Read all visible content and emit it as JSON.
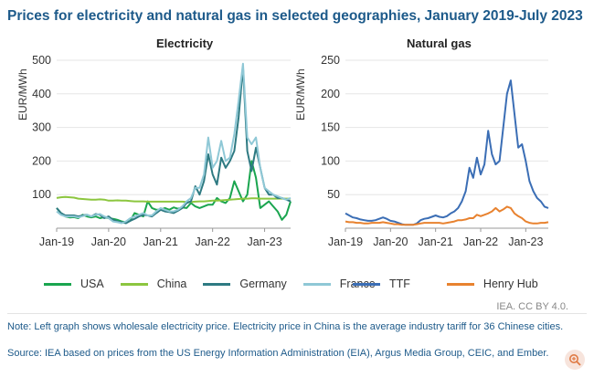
{
  "title": "Prices for electricity and natural gas in selected geographies, January 2019-July 2023",
  "credit": "IEA. CC BY 4.0.",
  "note": "Note: Left graph shows wholesale electricity price. Electricity price in China is the average industry tariff for 36 Chinese cities.",
  "source": "Source: IEA based on prices from the US Energy Information Administration (EIA), Argus Media Group, CEIC, and Ember.",
  "chart_data": [
    {
      "type": "line",
      "title": "Electricity",
      "ylabel": "EUR/MWh",
      "ylim": [
        0,
        500
      ],
      "yticks": [
        100,
        200,
        300,
        400,
        500
      ],
      "xticks": [
        "Jan-19",
        "Jan-20",
        "Jan-21",
        "Jan-22",
        "Jan-23"
      ],
      "x_range": [
        "2019-01",
        "2023-07"
      ],
      "x_start": "2019-01",
      "series": [
        {
          "name": "USA",
          "color": "#1aa54f",
          "values": [
            60,
            45,
            35,
            32,
            33,
            30,
            40,
            35,
            32,
            35,
            30,
            33,
            30,
            28,
            25,
            20,
            18,
            22,
            45,
            40,
            35,
            80,
            60,
            55,
            55,
            60,
            55,
            62,
            58,
            62,
            60,
            75,
            65,
            60,
            65,
            70,
            70,
            90,
            80,
            75,
            90,
            140,
            110,
            80,
            100,
            200,
            150,
            60,
            70,
            80,
            65,
            50,
            25,
            40,
            80
          ]
        },
        {
          "name": "China",
          "color": "#8cc63f",
          "values": [
            90,
            92,
            93,
            92,
            91,
            88,
            87,
            86,
            85,
            85,
            86,
            85,
            82,
            82,
            83,
            82,
            82,
            81,
            80,
            80,
            80,
            79,
            79,
            79,
            79,
            79,
            79,
            79,
            79,
            79,
            78,
            78,
            79,
            80,
            80,
            81,
            82,
            82,
            83,
            84,
            85,
            86,
            87,
            88,
            88,
            89,
            89,
            88,
            88,
            88,
            88,
            88,
            88,
            88,
            88
          ]
        },
        {
          "name": "Germany",
          "color": "#2e7a82",
          "values": [
            60,
            45,
            38,
            38,
            38,
            35,
            38,
            40,
            35,
            42,
            40,
            30,
            35,
            25,
            20,
            18,
            15,
            22,
            28,
            35,
            40,
            38,
            35,
            45,
            55,
            50,
            48,
            45,
            52,
            60,
            75,
            80,
            125,
            100,
            140,
            220,
            160,
            130,
            210,
            180,
            200,
            230,
            330,
            480,
            230,
            170,
            240,
            180,
            120,
            100,
            100,
            90,
            90,
            85,
            80
          ]
        },
        {
          "name": "France",
          "color": "#8fc8d6",
          "values": [
            50,
            40,
            35,
            35,
            35,
            32,
            36,
            40,
            35,
            40,
            42,
            35,
            30,
            20,
            18,
            15,
            20,
            30,
            35,
            40,
            45,
            38,
            38,
            50,
            60,
            55,
            50,
            50,
            55,
            65,
            80,
            90,
            120,
            120,
            160,
            270,
            180,
            200,
            260,
            200,
            210,
            280,
            380,
            490,
            270,
            250,
            270,
            180,
            120,
            110,
            100,
            95,
            90,
            85,
            90
          ]
        }
      ]
    },
    {
      "type": "line",
      "title": "Natural gas",
      "ylabel": "EUR/MWh",
      "ylim": [
        0,
        250
      ],
      "yticks": [
        50,
        100,
        150,
        200,
        250
      ],
      "xticks": [
        "Jan-19",
        "Jan-20",
        "Jan-21",
        "Jan-22",
        "Jan-23"
      ],
      "x_range": [
        "2019-01",
        "2023-07"
      ],
      "x_start": "2019-01",
      "series": [
        {
          "name": "TTF",
          "color": "#3b6eb5",
          "values": [
            22,
            19,
            16,
            15,
            13,
            12,
            11,
            11,
            12,
            14,
            16,
            14,
            11,
            10,
            8,
            6,
            5,
            5,
            5,
            7,
            12,
            14,
            15,
            17,
            19,
            17,
            16,
            18,
            22,
            25,
            30,
            40,
            55,
            90,
            75,
            105,
            80,
            95,
            145,
            110,
            95,
            100,
            150,
            200,
            220,
            170,
            120,
            125,
            100,
            70,
            55,
            45,
            40,
            32,
            30
          ]
        },
        {
          "name": "Henry Hub",
          "color": "#e8822f",
          "values": [
            10,
            9,
            9,
            8,
            8,
            7,
            7,
            8,
            8,
            8,
            9,
            8,
            7,
            6,
            6,
            5,
            5,
            5,
            5,
            6,
            7,
            8,
            8,
            8,
            8,
            8,
            7,
            8,
            9,
            10,
            12,
            12,
            13,
            15,
            15,
            20,
            18,
            20,
            22,
            25,
            30,
            25,
            28,
            32,
            30,
            22,
            18,
            15,
            10,
            8,
            7,
            7,
            8,
            8,
            9
          ]
        }
      ]
    }
  ],
  "legend_left": [
    "USA",
    "China",
    "Germany",
    "France"
  ],
  "legend_right": [
    "TTF",
    "Henry Hub"
  ],
  "icons": {
    "zoom": "zoom-in-icon"
  }
}
